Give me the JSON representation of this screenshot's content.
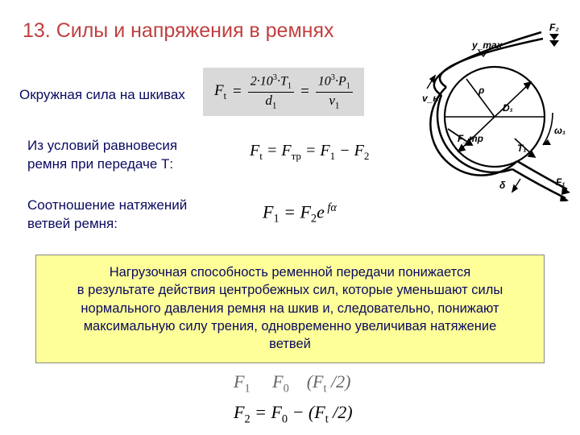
{
  "title": "13. Силы и напряжения в ремнях",
  "line1": "Окружная сила на шкивах",
  "formula1": {
    "lhs": "F",
    "lhs_sub": "t",
    "eq": "=",
    "frac1_num_pre": "2·10",
    "frac1_num_sup": "3",
    "frac1_num_post": "·T",
    "frac1_num_sub": "1",
    "frac1_den": "d",
    "frac1_den_sub": "1",
    "frac2_num_pre": "10",
    "frac2_num_sup": "3",
    "frac2_num_post": "·P",
    "frac2_num_sub": "1",
    "frac2_den": "v",
    "frac2_den_sub": "1"
  },
  "line2": "Из условий равновесия\nремня при передаче Т:",
  "formula2": "F_t = F_тр = F_1 − F_2",
  "line3": "Соотношение натяжений\nветвей ремня:",
  "formula3": "F_1 = F_2 e^{fα}",
  "box": "Нагрузочная способность ременной передачи понижается\nв результате действия центробежных сил, которые уменьшают силы\nнормального давления ремня на шкив и, следовательно, понижают\nмаксимальную силу трения, одновременно увеличивая натяжение\nветвей",
  "below1": "F_1 ? F_0 ? (F_t /2)",
  "below2": "F_2 = F_0 − (F_t /2)",
  "diagram": {
    "labels": {
      "F2": "F₂",
      "F1": "F₁",
      "D1": "D₁",
      "ymax": "y_max",
      "rho": "ρ",
      "Ftr": "F_тр",
      "T1": "T₁",
      "omega1": "ω₁",
      "delta": "δ",
      "vn_top": "v_н",
      "vn_bot": "v_в"
    }
  },
  "colors": {
    "title": "#c04040",
    "text": "#0a0a60",
    "box_bg": "#ffff99",
    "formula_bg": "#d9d9d9"
  }
}
